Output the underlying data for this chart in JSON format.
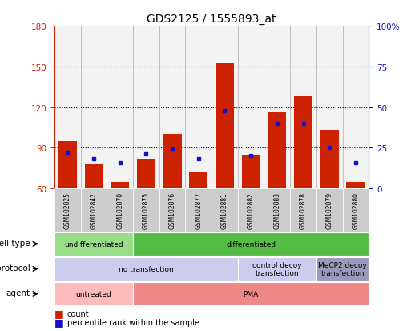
{
  "title": "GDS2125 / 1555893_at",
  "samples": [
    "GSM102825",
    "GSM102842",
    "GSM102870",
    "GSM102875",
    "GSM102876",
    "GSM102877",
    "GSM102881",
    "GSM102882",
    "GSM102883",
    "GSM102878",
    "GSM102879",
    "GSM102880"
  ],
  "red_values": [
    95,
    78,
    65,
    82,
    100,
    72,
    153,
    85,
    116,
    128,
    103,
    65
  ],
  "blue_values": [
    22,
    18,
    16,
    21,
    24,
    18,
    48,
    20,
    40,
    40,
    25,
    16
  ],
  "ylim_left": [
    60,
    180
  ],
  "ylim_right": [
    0,
    100
  ],
  "yticks_left": [
    60,
    90,
    120,
    150,
    180
  ],
  "yticks_right": [
    0,
    25,
    50,
    75,
    100
  ],
  "bar_color": "#cc2200",
  "dot_color": "#1111cc",
  "cell_type_spans": [
    [
      0,
      3,
      "undifferentiated",
      "#99dd88"
    ],
    [
      3,
      12,
      "differentiated",
      "#55bb44"
    ]
  ],
  "protocol_spans": [
    [
      0,
      7,
      "no transfection",
      "#ccccee"
    ],
    [
      7,
      10,
      "control decoy\ntransfection",
      "#ccccee"
    ],
    [
      10,
      12,
      "MeCP2 decoy\ntransfection",
      "#9999bb"
    ]
  ],
  "agent_spans": [
    [
      0,
      3,
      "untreated",
      "#ffbbbb"
    ],
    [
      3,
      12,
      "PMA",
      "#ee8888"
    ]
  ],
  "left_axis_color": "#cc2200",
  "right_axis_color": "#1111cc",
  "row_labels": [
    "cell type",
    "protocol",
    "agent"
  ],
  "legend_items": [
    [
      "count",
      "#cc2200"
    ],
    [
      "percentile rank within the sample",
      "#1111cc"
    ]
  ]
}
